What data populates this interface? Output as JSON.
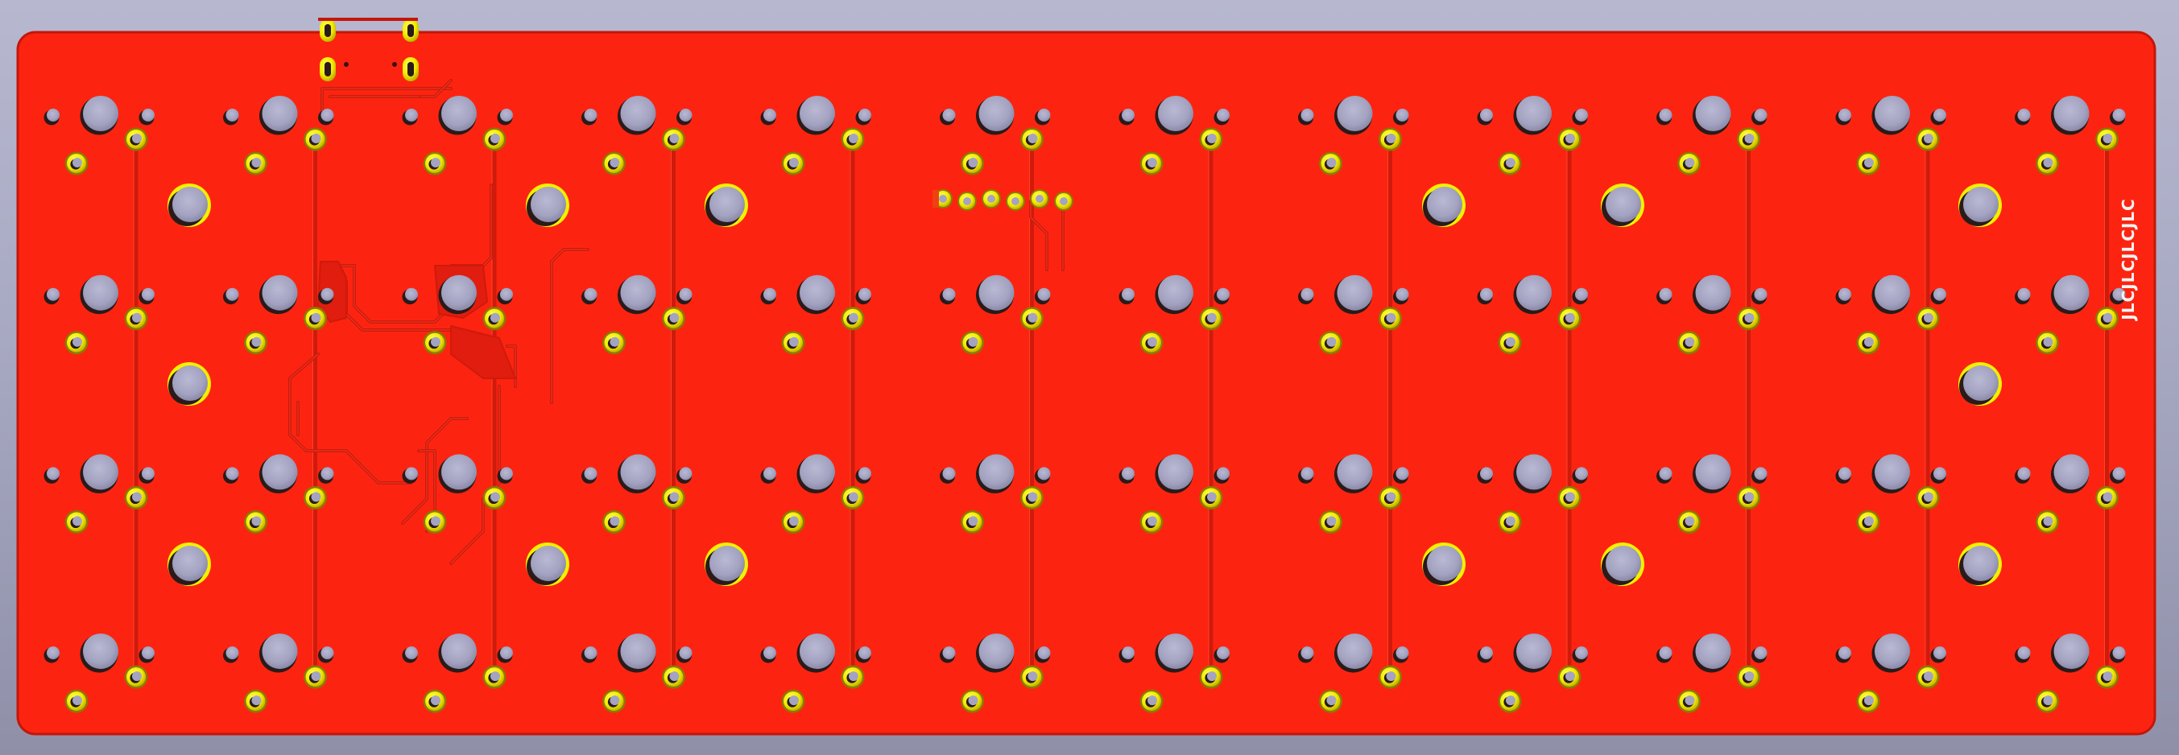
{
  "board": {
    "silkscreen_text": "JLCJLCJLCJLC",
    "colors": {
      "background_top": "#b7b8cf",
      "background_bottom": "#8f90a8",
      "board": "#fc2410",
      "board_edge": "#c4160a",
      "trace": "#cf1a0c",
      "trace_highlight": "#ff5a40",
      "pad": "#f4f000",
      "pad_ring_dark": "#8c7a00",
      "hole": "#a4a4c2",
      "hole_shadow": "#2a1a1a",
      "silkscreen": "#f4f4f4"
    },
    "grid": {
      "columns": 12,
      "rows": 4
    }
  }
}
